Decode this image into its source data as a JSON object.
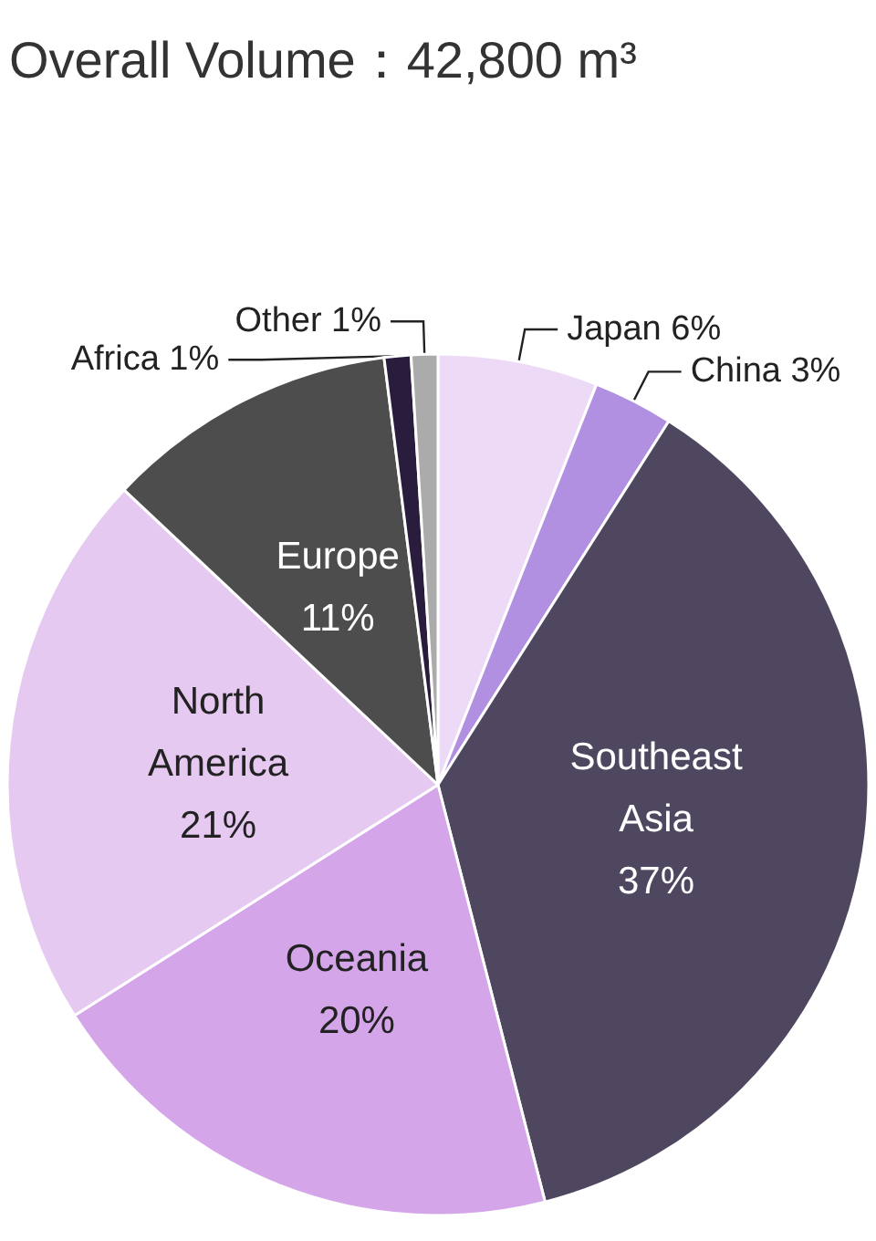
{
  "chart_data": {
    "type": "pie",
    "title": "Overall Volume：42,800 m³",
    "categories": [
      "Japan",
      "China",
      "Southeast Asia",
      "Oceania",
      "North America",
      "Europe",
      "Africa",
      "Other"
    ],
    "values": [
      6,
      3,
      37,
      20,
      21,
      11,
      1,
      1
    ],
    "value_labels": [
      "6%",
      "3%",
      "37%",
      "20%",
      "21%",
      "11%",
      "1%",
      "1%"
    ],
    "colors": [
      "#ecdaf6",
      "#b190e2",
      "#4f4660",
      "#d5a5e9",
      "#e6c9f1",
      "#4d4d4d",
      "#2a1c3c",
      "#ababab"
    ],
    "legend": false
  }
}
